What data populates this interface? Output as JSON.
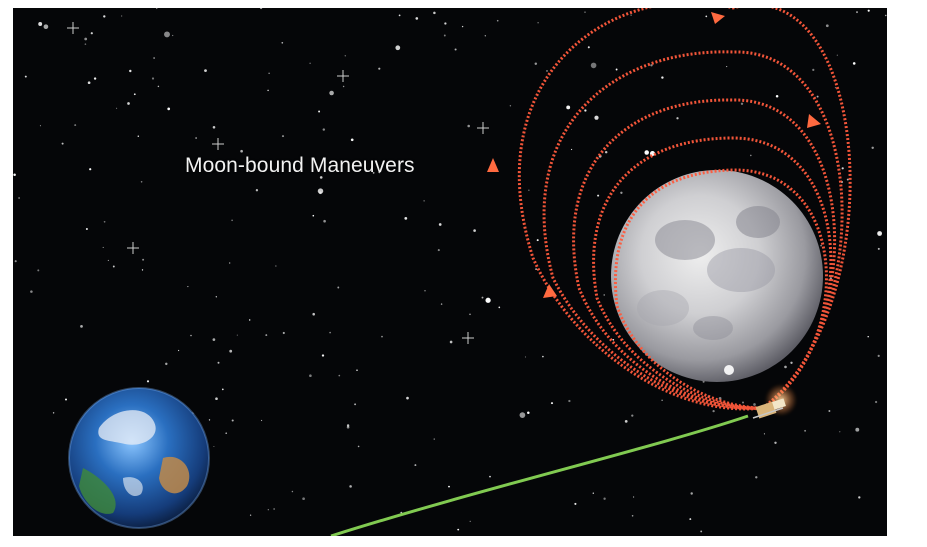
{
  "scene": {
    "title": "Moon-bound Maneuvers",
    "colors": {
      "background": "#050608",
      "orbit": "#ff5a3c",
      "trajectory": "#8fe05a",
      "moon": "#cfcfcf",
      "earth_ocean": "#2a6fc0"
    },
    "objects": {
      "earth": "earth-icon",
      "moon": "moon-icon",
      "spacecraft": "spacecraft-icon"
    }
  }
}
